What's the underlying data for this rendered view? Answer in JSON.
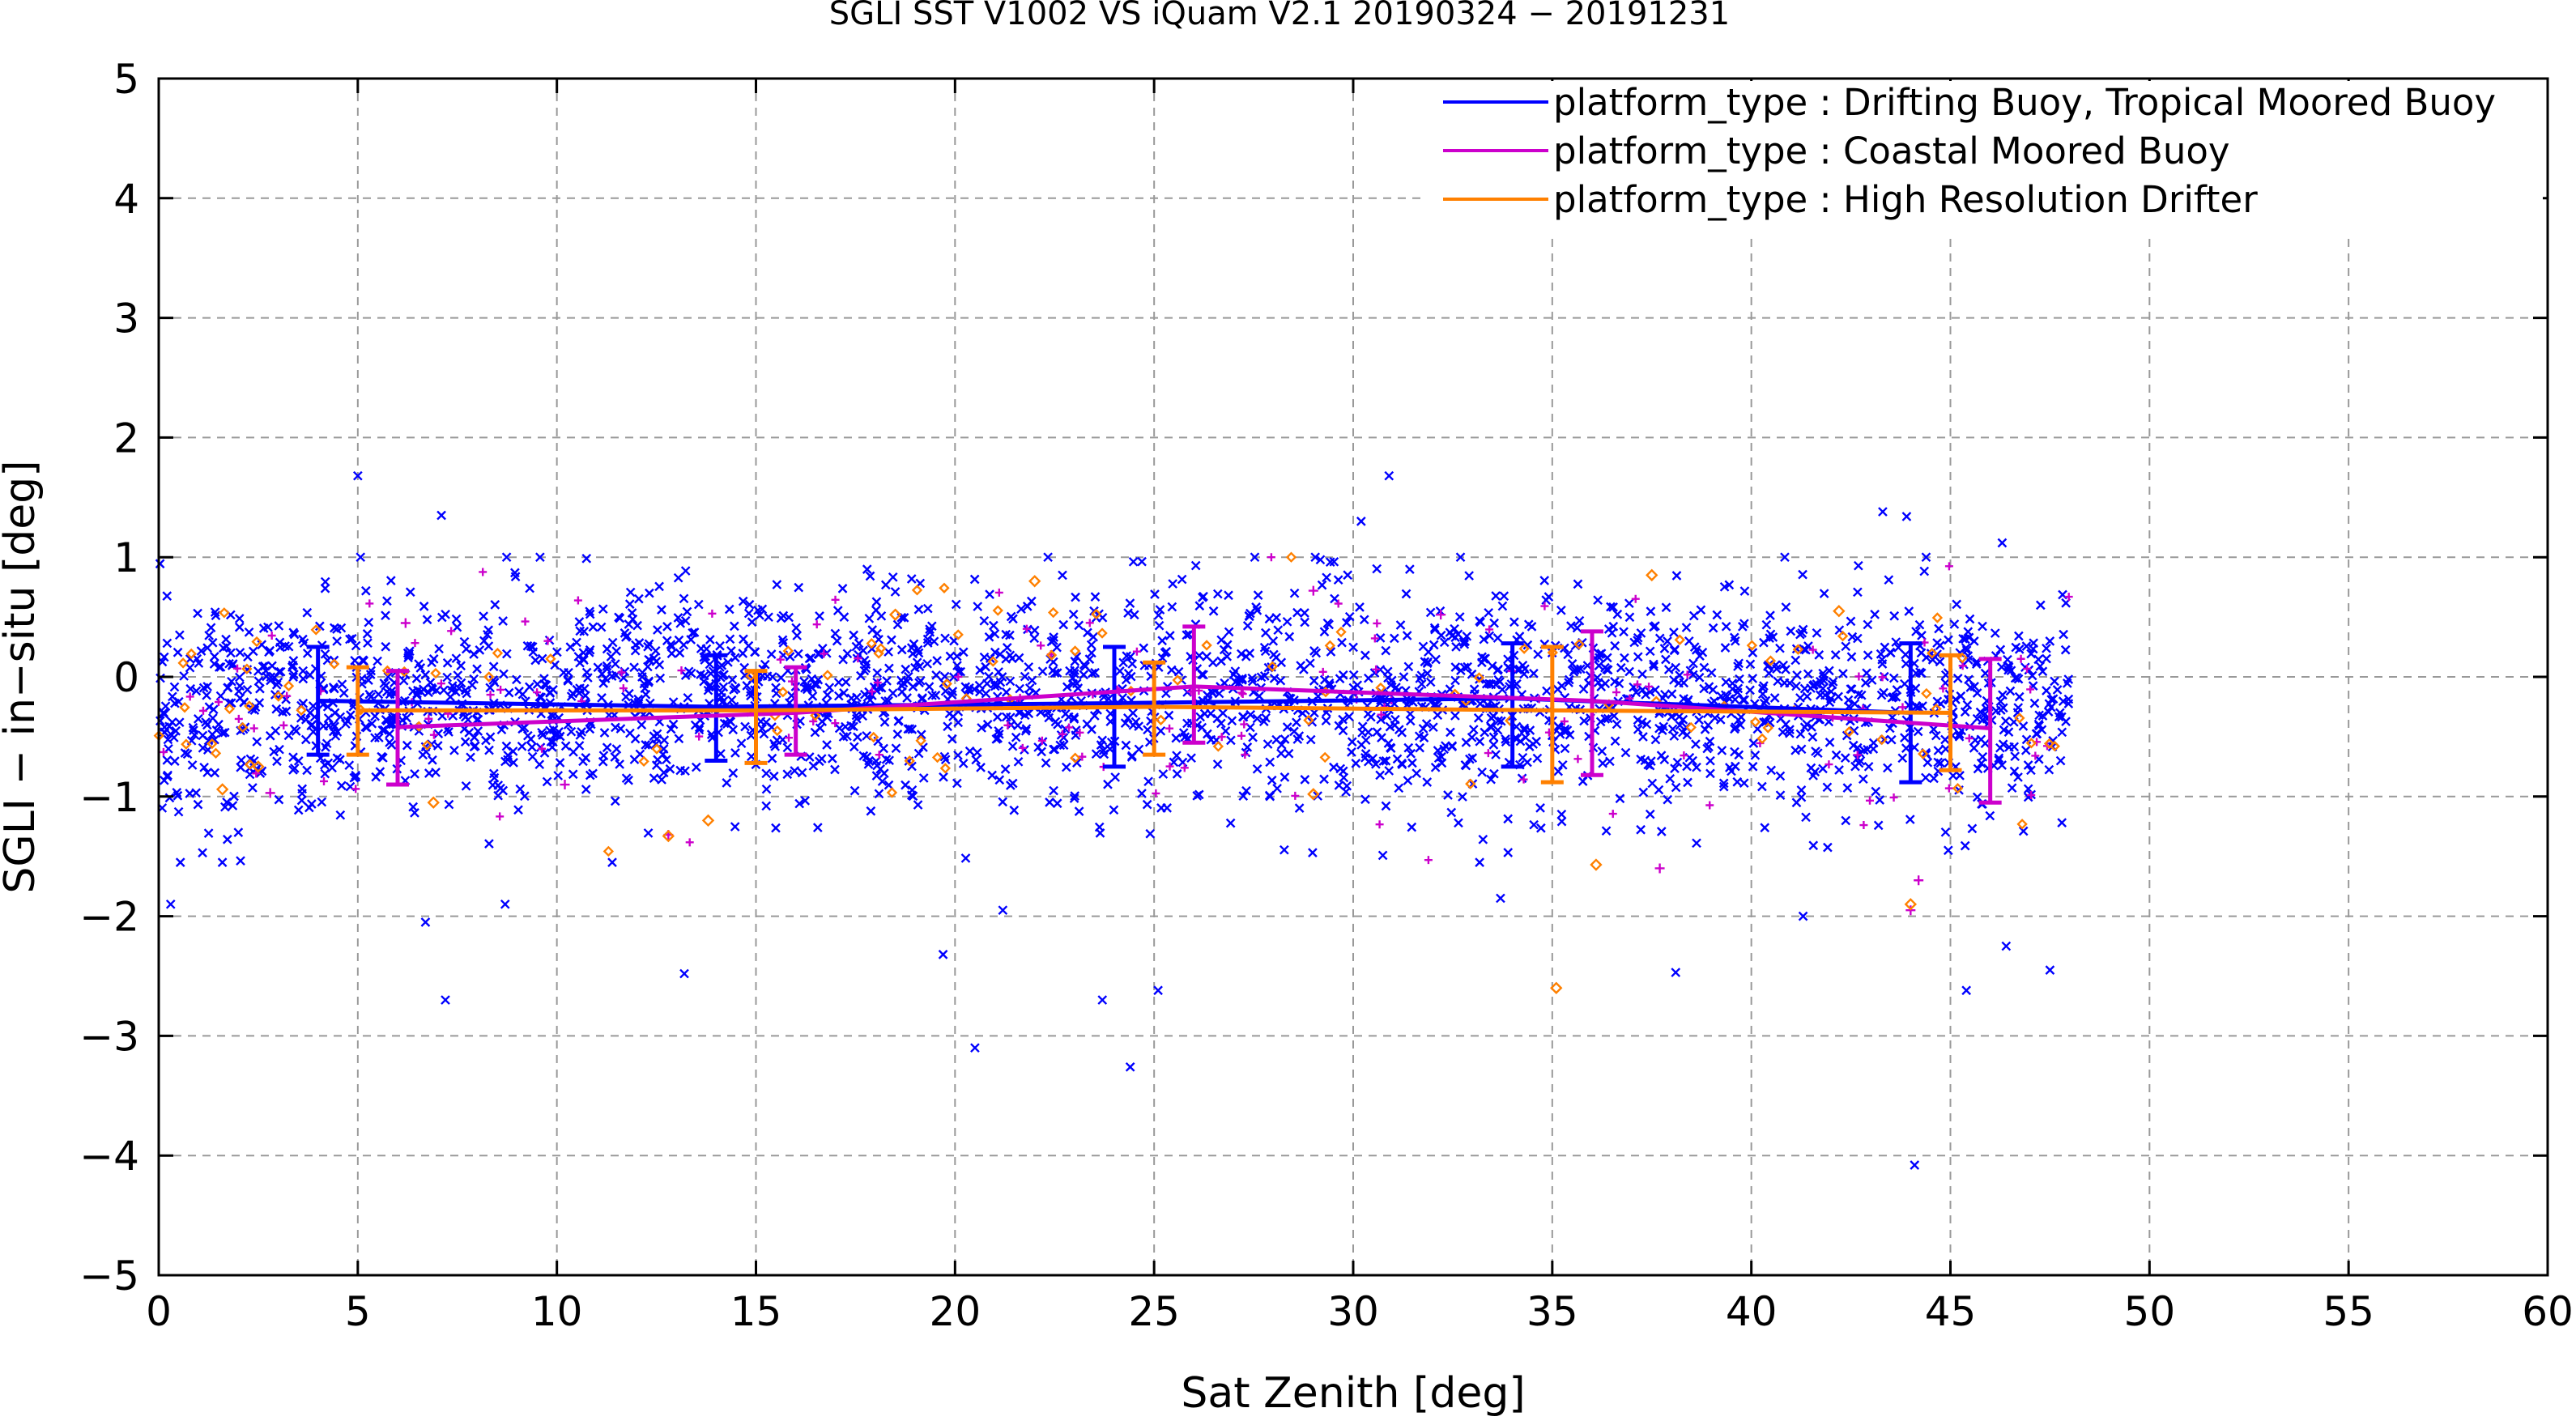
{
  "colors": {
    "drifting": "#0000ff",
    "coastal": "#cc00cc",
    "hrd": "#ff8000",
    "grid": "#999999",
    "axis": "#000000"
  },
  "chart_data": {
    "type": "scatter",
    "title": "SGLI SST V1002 VS iQuam V2.1 20190324 − 20191231",
    "xlabel": "Sat Zenith [deg]",
    "ylabel": "SGLI − in−situ [deg]",
    "xlim": [
      0,
      60
    ],
    "ylim": [
      -5,
      5
    ],
    "xticks": [
      0,
      5,
      10,
      15,
      20,
      25,
      30,
      35,
      40,
      45,
      50,
      55,
      60
    ],
    "yticks": [
      -5,
      -4,
      -3,
      -2,
      -1,
      0,
      1,
      2,
      3,
      4,
      5
    ],
    "x_tick_labels": [
      "0",
      "5",
      "10",
      "15",
      "20",
      "25",
      "30",
      "35",
      "40",
      "45",
      "50",
      "55",
      "60"
    ],
    "y_tick_labels": [
      "−5",
      "−4",
      "−3",
      "−2",
      "−1",
      "0",
      "1",
      "2",
      "3",
      "4",
      "5"
    ],
    "grid": true,
    "legend_position": "top-right",
    "series": [
      {
        "name": "platform_type : Drifting Buoy, Tropical Moored Buoy",
        "color": "#0000ff",
        "marker": "x",
        "mean_line": {
          "x": [
            4,
            14,
            24,
            34,
            44
          ],
          "y": [
            -0.2,
            -0.25,
            -0.22,
            -0.18,
            -0.3
          ]
        },
        "error_bars": [
          {
            "x": 4,
            "low": -0.65,
            "high": 0.25
          },
          {
            "x": 14,
            "low": -0.7,
            "high": 0.18
          },
          {
            "x": 24,
            "low": -0.75,
            "high": 0.25
          },
          {
            "x": 34,
            "low": -0.75,
            "high": 0.28
          },
          {
            "x": 44,
            "low": -0.88,
            "high": 0.28
          }
        ],
        "outliers": [
          {
            "x": 0.3,
            "y": -1.9
          },
          {
            "x": 1.1,
            "y": -1.47
          },
          {
            "x": 2.0,
            "y": -1.3
          },
          {
            "x": 5.0,
            "y": 1.68
          },
          {
            "x": 6.7,
            "y": -2.05
          },
          {
            "x": 7.1,
            "y": 1.35
          },
          {
            "x": 7.2,
            "y": -2.7
          },
          {
            "x": 8.7,
            "y": -1.9
          },
          {
            "x": 13.2,
            "y": -2.48
          },
          {
            "x": 19.7,
            "y": -2.32
          },
          {
            "x": 20.5,
            "y": -3.1
          },
          {
            "x": 23.7,
            "y": -2.7
          },
          {
            "x": 24.4,
            "y": -3.26
          },
          {
            "x": 25.1,
            "y": -2.62
          },
          {
            "x": 30.2,
            "y": 1.3
          },
          {
            "x": 30.9,
            "y": 1.68
          },
          {
            "x": 38.1,
            "y": -2.47
          },
          {
            "x": 41.3,
            "y": -2.0
          },
          {
            "x": 43.3,
            "y": 1.38
          },
          {
            "x": 43.9,
            "y": 1.34
          },
          {
            "x": 44.1,
            "y": -4.08
          },
          {
            "x": 45.4,
            "y": -2.62
          },
          {
            "x": 46.3,
            "y": 1.12
          },
          {
            "x": 46.4,
            "y": -2.25
          },
          {
            "x": 47.5,
            "y": -2.45
          },
          {
            "x": 21.2,
            "y": -1.95
          },
          {
            "x": 33.7,
            "y": -1.85
          }
        ]
      },
      {
        "name": "platform_type : Coastal Moored Buoy",
        "color": "#cc00cc",
        "marker": "+",
        "mean_line": {
          "x": [
            6,
            16,
            26,
            36,
            46
          ],
          "y": [
            -0.42,
            -0.3,
            -0.08,
            -0.2,
            -0.43
          ]
        },
        "error_bars": [
          {
            "x": 6,
            "low": -0.9,
            "high": 0.05
          },
          {
            "x": 16,
            "low": -0.65,
            "high": 0.08
          },
          {
            "x": 26,
            "low": -0.55,
            "high": 0.42
          },
          {
            "x": 36,
            "low": -0.82,
            "high": 0.38
          },
          {
            "x": 46,
            "low": -1.05,
            "high": 0.15
          }
        ],
        "outliers": [
          {
            "x": 2.8,
            "y": -0.97
          },
          {
            "x": 6.2,
            "y": 0.45
          },
          {
            "x": 10.2,
            "y": -0.9
          },
          {
            "x": 12.8,
            "y": -1.32
          },
          {
            "x": 29.0,
            "y": 0.72
          },
          {
            "x": 32.2,
            "y": 0.52
          },
          {
            "x": 37.7,
            "y": -1.6
          },
          {
            "x": 44.2,
            "y": -1.7
          },
          {
            "x": 44.0,
            "y": -1.95
          }
        ]
      },
      {
        "name": "platform_type : High Resolution Drifter",
        "color": "#ff8000",
        "marker": "diamond",
        "mean_line": {
          "x": [
            5,
            15,
            25,
            35,
            45
          ],
          "y": [
            -0.28,
            -0.28,
            -0.25,
            -0.28,
            -0.3
          ]
        },
        "error_bars": [
          {
            "x": 5,
            "low": -0.65,
            "high": 0.08
          },
          {
            "x": 15,
            "low": -0.72,
            "high": 0.05
          },
          {
            "x": 25,
            "low": -0.65,
            "high": 0.12
          },
          {
            "x": 35,
            "low": -0.88,
            "high": 0.25
          },
          {
            "x": 45,
            "low": -0.78,
            "high": 0.18
          }
        ],
        "outliers": [
          {
            "x": 1.6,
            "y": -0.94
          },
          {
            "x": 2.5,
            "y": -0.75
          },
          {
            "x": 6.9,
            "y": -1.05
          },
          {
            "x": 12.8,
            "y": -1.33
          },
          {
            "x": 13.8,
            "y": -1.2
          },
          {
            "x": 18.5,
            "y": 0.52
          },
          {
            "x": 22.0,
            "y": 0.8
          },
          {
            "x": 35.1,
            "y": -2.6
          },
          {
            "x": 36.1,
            "y": -1.57
          },
          {
            "x": 37.5,
            "y": 0.85
          },
          {
            "x": 29.0,
            "y": -0.98
          },
          {
            "x": 44.0,
            "y": -1.9
          },
          {
            "x": 42.2,
            "y": 0.55
          }
        ]
      }
    ],
    "scatter_cloud": {
      "x_range": [
        0,
        48
      ],
      "description_values": {
        "center_mean": -0.28,
        "spread_sd": 0.45
      },
      "counts": {
        "drifting": 2600,
        "coastal": 140,
        "hrd": 110
      }
    }
  }
}
